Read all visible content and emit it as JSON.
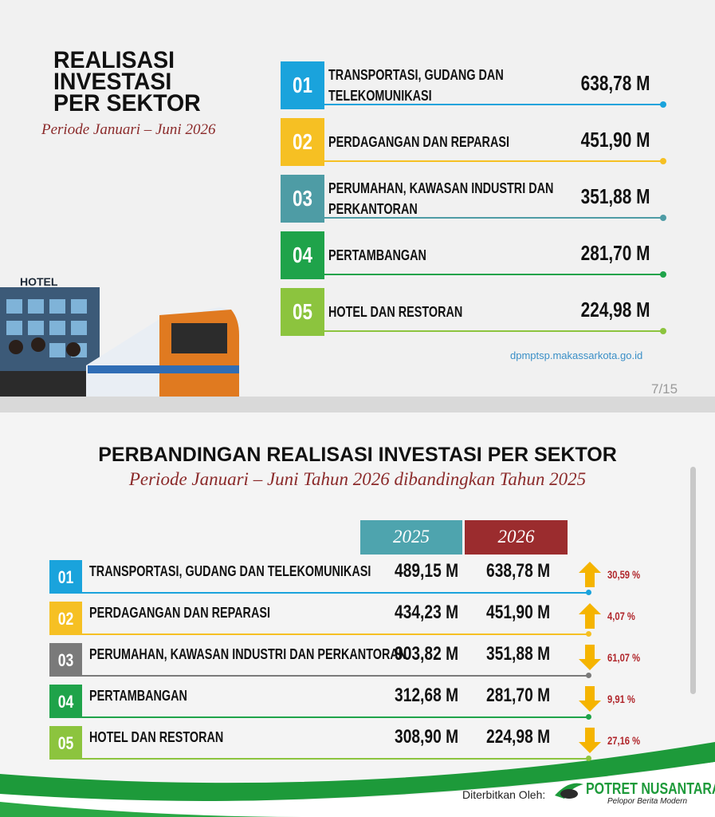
{
  "slide1": {
    "title_lines": [
      "REALISASI",
      "INVESTASI",
      "PER SEKTOR"
    ],
    "period": "Periode Januari – Juni 2026",
    "illustration_sign": "HOTEL",
    "rows": [
      {
        "no": "01",
        "sector": [
          "TRANSPORTASI, GUDANG DAN",
          "TELEKOMUNIKASI"
        ],
        "value": "638,78 M",
        "color": "#1aa3dc"
      },
      {
        "no": "02",
        "sector": [
          "PERDAGANGAN DAN REPARASI"
        ],
        "value": "451,90 M",
        "color": "#f6c023"
      },
      {
        "no": "03",
        "sector": [
          "PERUMAHAN, KAWASAN INDUSTRI DAN",
          "PERKANTORAN"
        ],
        "value": "351,88 M",
        "color": "#4e9ca5"
      },
      {
        "no": "04",
        "sector": [
          "PERTAMBANGAN"
        ],
        "value": "281,70 M",
        "color": "#1fa34a"
      },
      {
        "no": "05",
        "sector": [
          "HOTEL DAN RESTORAN"
        ],
        "value": "224,98 M",
        "color": "#8cc43e"
      }
    ],
    "source": "dpmptsp.makassarkota.go.id",
    "page": "7/15"
  },
  "slide2": {
    "title": "PERBANDINGAN REALISASI INVESTASI PER SEKTOR",
    "subtitle": "Periode Januari – Juni Tahun 2026 dibandingkan Tahun 2025",
    "headers": [
      "2025",
      "2026"
    ],
    "rows": [
      {
        "no": "01",
        "sector": "TRANSPORTASI, GUDANG DAN TELEKOMUNIKASI",
        "v2025": "489,15 M",
        "v2026": "638,78 M",
        "change": "30,59 %",
        "direction": "up",
        "color": "#1aa3dc"
      },
      {
        "no": "02",
        "sector": "PERDAGANGAN DAN REPARASI",
        "v2025": "434,23 M",
        "v2026": "451,90 M",
        "change": "4,07 %",
        "direction": "up",
        "color": "#f6c023"
      },
      {
        "no": "03",
        "sector": "PERUMAHAN, KAWASAN INDUSTRI DAN PERKANTORAN",
        "v2025": "903,82 M",
        "v2026": "351,88 M",
        "change": "61,07 %",
        "direction": "down",
        "color": "#7a7a7a"
      },
      {
        "no": "04",
        "sector": "PERTAMBANGAN",
        "v2025": "312,68 M",
        "v2026": "281,70 M",
        "change": "9,91 %",
        "direction": "down",
        "color": "#1fa34a"
      },
      {
        "no": "05",
        "sector": "HOTEL DAN RESTORAN",
        "v2025": "308,90 M",
        "v2026": "224,98 M",
        "change": "27,16 %",
        "direction": "down",
        "color": "#8cc43e"
      }
    ]
  },
  "footer": {
    "published_by": "Diterbitkan Oleh:",
    "brand": "POTRET NUSANTARA",
    "tagline": "Pelopor Berita Modern"
  }
}
